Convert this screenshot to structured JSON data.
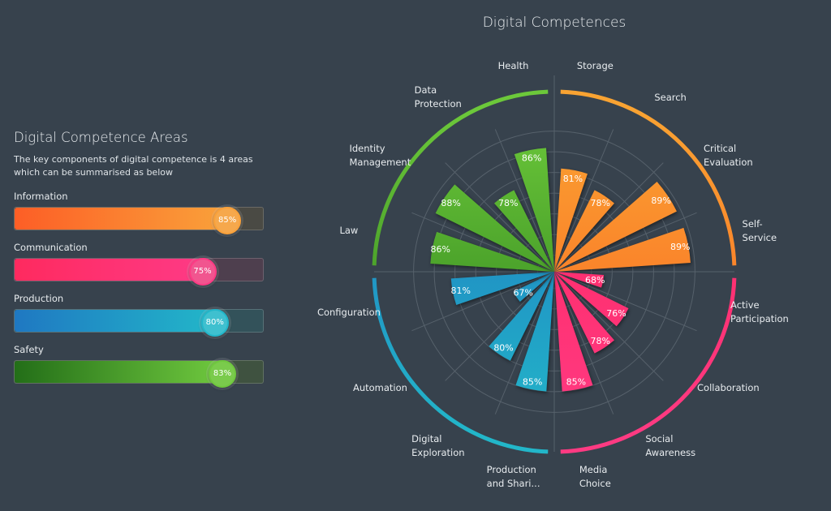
{
  "panel": {
    "title": "Digital Competence Areas",
    "description": "The key components of digital competence is 4 areas which can be summarised as below",
    "areas": [
      {
        "label": "Information",
        "value": 85,
        "value_label": "85%",
        "from": "#fd5e26",
        "to": "#f9a13a",
        "track": "#4a4a44",
        "knob": "#f6a84c"
      },
      {
        "label": "Communication",
        "value": 75,
        "value_label": "75%",
        "from": "#fe2a5f",
        "to": "#fe3a85",
        "track": "#4e3f4e",
        "knob": "#f1558f"
      },
      {
        "label": "Production",
        "value": 80,
        "value_label": "80%",
        "from": "#1f78c2",
        "to": "#22b6c9",
        "track": "#33525a",
        "knob": "#3fc0cf"
      },
      {
        "label": "Safety",
        "value": 83,
        "value_label": "83%",
        "from": "#236e18",
        "to": "#6fc83e",
        "track": "#3f5240",
        "knob": "#7acb4c"
      }
    ]
  },
  "chart_data": {
    "type": "polar-bar",
    "title": "Digital Competences",
    "rlim": [
      56,
      100
    ],
    "groups": [
      {
        "name": "Information",
        "color_from": "#f9a332",
        "color_to": "#fb6523"
      },
      {
        "name": "Communication",
        "color_from": "#ff3a82",
        "color_to": "#fe2660"
      },
      {
        "name": "Production",
        "color_from": "#22b6c9",
        "color_to": "#1f74c0"
      },
      {
        "name": "Safety",
        "color_from": "#6cc83a",
        "color_to": "#2b7d1c"
      }
    ],
    "categories": [
      {
        "label": "Storage",
        "value": 81,
        "value_label": "81%",
        "group": 0
      },
      {
        "label": "Search",
        "value": 78,
        "value_label": "78%",
        "group": 0
      },
      {
        "label": "Critical\nEvaluation",
        "value": 89,
        "value_label": "89%",
        "group": 0
      },
      {
        "label": "Self-\nService",
        "value": 89,
        "value_label": "89%",
        "group": 0
      },
      {
        "label": "Active\nParticipation",
        "value": 68,
        "value_label": "68%",
        "group": 1
      },
      {
        "label": "Collaboration",
        "value": 76,
        "value_label": "76%",
        "group": 1
      },
      {
        "label": "Social\nAwareness",
        "value": 78,
        "value_label": "78%",
        "group": 1
      },
      {
        "label": "Media\nChoice",
        "value": 85,
        "value_label": "85%",
        "group": 1
      },
      {
        "label": "Production\nand Shari...",
        "value": 85,
        "value_label": "85%",
        "group": 2
      },
      {
        "label": "Digital\nExploration",
        "value": 80,
        "value_label": "80%",
        "group": 2
      },
      {
        "label": "Automation",
        "value": 67,
        "value_label": "67%",
        "group": 2
      },
      {
        "label": "Configuration",
        "value": 81,
        "value_label": "81%",
        "group": 2
      },
      {
        "label": "Law",
        "value": 86,
        "value_label": "86%",
        "group": 3
      },
      {
        "label": "Identity\nManagement",
        "value": 88,
        "value_label": "88%",
        "group": 3
      },
      {
        "label": "Data\nProtection",
        "value": 78,
        "value_label": "78%",
        "group": 3
      },
      {
        "label": "Health",
        "value": 86,
        "value_label": "86%",
        "group": 3
      }
    ]
  }
}
